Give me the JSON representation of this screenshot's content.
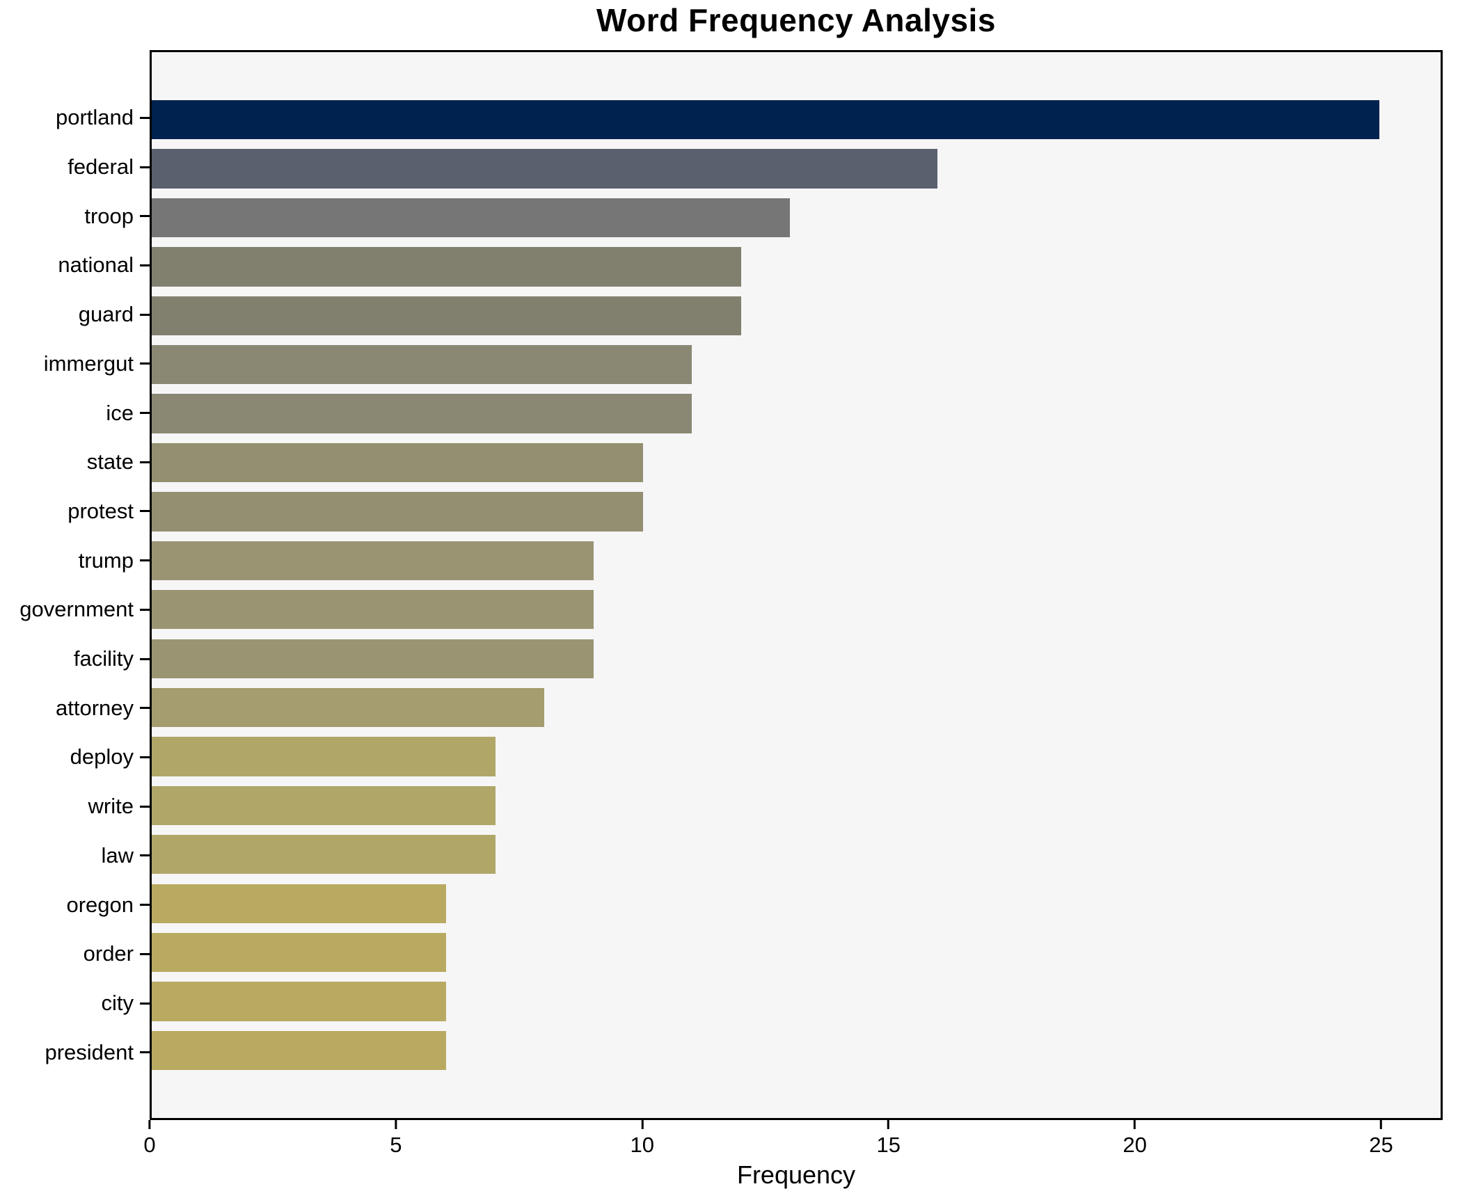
{
  "chart": {
    "title": "Word Frequency Analysis",
    "xlabel": "Frequency",
    "plot_background": "#f6f6f7",
    "figure_background": "#ffffff",
    "spine_color": "#000000",
    "text_color": "#000000"
  },
  "chart_data": {
    "type": "bar",
    "orientation": "horizontal",
    "title": "Word Frequency Analysis",
    "xlabel": "Frequency",
    "ylabel": "",
    "categories": [
      "portland",
      "federal",
      "troop",
      "national",
      "guard",
      "immergut",
      "ice",
      "state",
      "protest",
      "trump",
      "government",
      "facility",
      "attorney",
      "deploy",
      "write",
      "law",
      "oregon",
      "order",
      "city",
      "president"
    ],
    "values": [
      25,
      16,
      13,
      12,
      12,
      11,
      11,
      10,
      10,
      9,
      9,
      9,
      8,
      7,
      7,
      7,
      6,
      6,
      6,
      6
    ],
    "bar_colors": [
      "#00224e",
      "#5b606f",
      "#767677",
      "#81806f",
      "#81806f",
      "#8a8873",
      "#8a8873",
      "#929070",
      "#929070",
      "#9b9473",
      "#9b9473",
      "#9b9473",
      "#a59c6f",
      "#b0a668",
      "#b0a668",
      "#b0a668",
      "#b9aa62",
      "#b9aa62",
      "#b9aa62",
      "#b9aa62"
    ],
    "xlim": [
      0,
      26.25
    ],
    "xticks": [
      0,
      5,
      10,
      15,
      20,
      25
    ],
    "grid": false,
    "legend": null,
    "bar_height_fraction": 0.8
  }
}
